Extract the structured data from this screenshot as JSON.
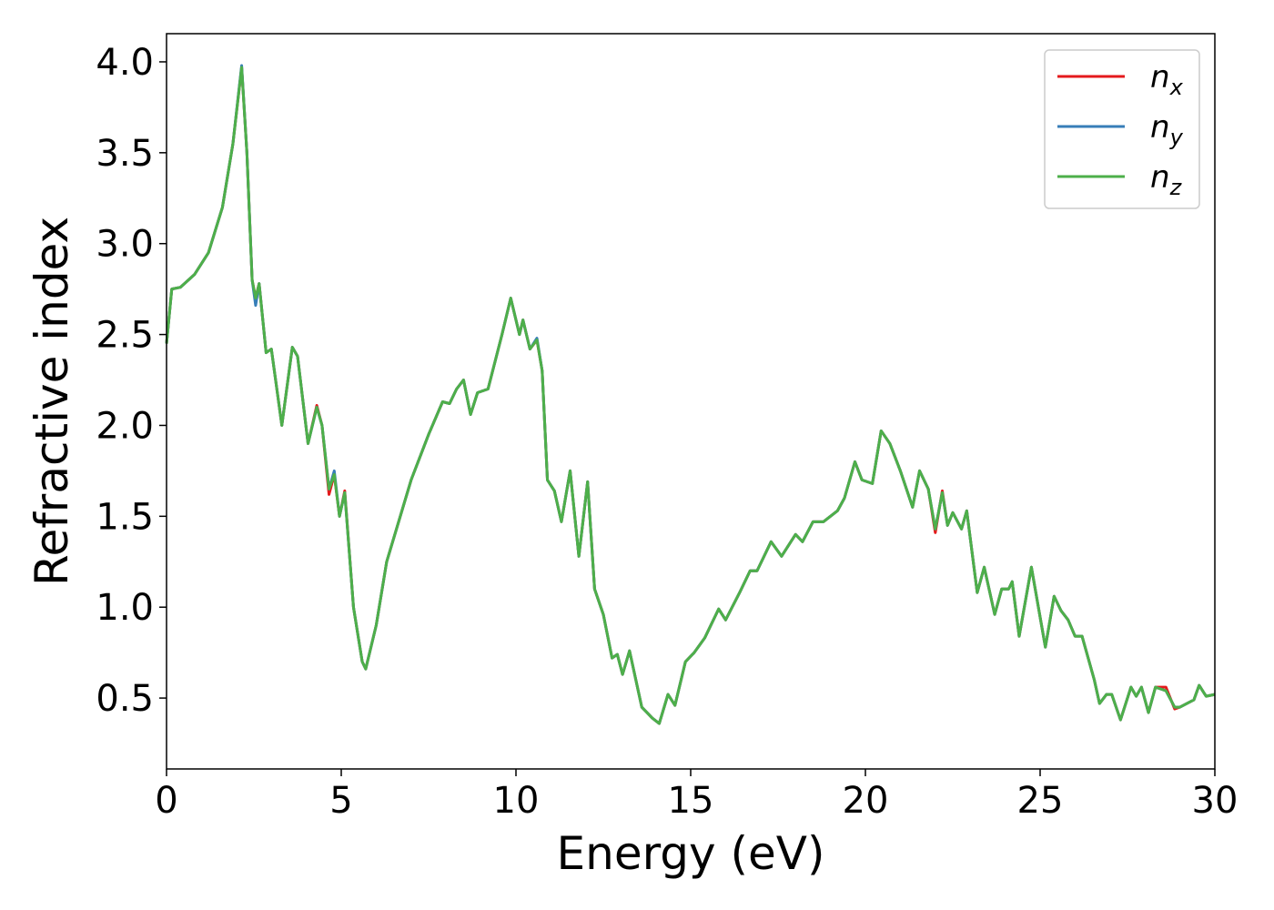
{
  "chart_data": {
    "type": "line",
    "x_label": "Energy (eV)",
    "y_label": "Refractive index",
    "xlim": [
      0,
      30
    ],
    "ylim": [
      0.11,
      4.155
    ],
    "xticks": [
      0,
      5,
      10,
      15,
      20,
      25,
      30
    ],
    "yticks": [
      0.5,
      {
        "value": 1,
        "label": "1.0"
      },
      1.5,
      {
        "value": 2,
        "label": "2.0"
      },
      2.5,
      {
        "value": 3,
        "label": "3.0"
      },
      3.5,
      {
        "value": 4,
        "label": "4.0"
      }
    ],
    "legend": "upper right",
    "grid": false,
    "x": [
      0,
      0.15,
      0.4,
      0.8,
      1.2,
      1.6,
      1.9,
      2.15,
      2.3,
      2.45,
      2.55,
      2.65,
      2.85,
      3.0,
      3.3,
      3.6,
      3.75,
      4.05,
      4.3,
      4.45,
      4.65,
      4.8,
      4.95,
      5.1,
      5.35,
      5.6,
      5.7,
      6.0,
      6.3,
      7.0,
      7.5,
      7.9,
      8.1,
      8.3,
      8.5,
      8.7,
      8.9,
      9.2,
      9.6,
      9.85,
      10.1,
      10.2,
      10.4,
      10.6,
      10.75,
      10.9,
      11.1,
      11.3,
      11.55,
      11.8,
      12.05,
      12.25,
      12.5,
      12.75,
      12.9,
      13.05,
      13.25,
      13.6,
      13.9,
      14.1,
      14.35,
      14.55,
      14.85,
      15.1,
      15.4,
      15.8,
      16.0,
      16.4,
      16.7,
      16.9,
      17.3,
      17.6,
      18.0,
      18.2,
      18.5,
      18.8,
      19.2,
      19.4,
      19.7,
      19.9,
      20.2,
      20.45,
      20.7,
      21.0,
      21.35,
      21.55,
      21.8,
      22.0,
      22.2,
      22.35,
      22.5,
      22.75,
      22.9,
      23.2,
      23.4,
      23.7,
      23.9,
      24.1,
      24.2,
      24.4,
      24.75,
      25.05,
      25.15,
      25.4,
      25.6,
      25.8,
      26.0,
      26.2,
      26.55,
      26.7,
      26.9,
      27.05,
      27.3,
      27.6,
      27.75,
      27.9,
      28.1,
      28.3,
      28.6,
      28.85,
      29.0,
      29.4,
      29.55,
      29.75,
      30.0
    ],
    "series": [
      {
        "name": "n_x",
        "color": "#e41a1c",
        "values": [
          2.45,
          2.75,
          2.76,
          2.83,
          2.95,
          3.2,
          3.55,
          3.97,
          3.5,
          2.8,
          2.7,
          2.78,
          2.4,
          2.42,
          2.0,
          2.43,
          2.38,
          1.9,
          2.11,
          2.0,
          1.62,
          1.73,
          1.5,
          1.64,
          1.0,
          0.7,
          0.66,
          0.9,
          1.25,
          1.7,
          1.95,
          2.13,
          2.12,
          2.2,
          2.25,
          2.06,
          2.18,
          2.2,
          2.5,
          2.7,
          2.5,
          2.58,
          2.42,
          2.47,
          2.3,
          1.7,
          1.64,
          1.47,
          1.75,
          1.28,
          1.69,
          1.1,
          0.96,
          0.72,
          0.74,
          0.63,
          0.76,
          0.45,
          0.39,
          0.36,
          0.52,
          0.46,
          0.7,
          0.75,
          0.83,
          0.99,
          0.93,
          1.08,
          1.2,
          1.2,
          1.36,
          1.28,
          1.4,
          1.36,
          1.47,
          1.47,
          1.53,
          1.6,
          1.8,
          1.7,
          1.68,
          1.97,
          1.9,
          1.75,
          1.55,
          1.75,
          1.65,
          1.41,
          1.64,
          1.45,
          1.52,
          1.43,
          1.53,
          1.08,
          1.22,
          0.96,
          1.1,
          1.1,
          1.14,
          0.84,
          1.22,
          0.89,
          0.78,
          1.06,
          0.98,
          0.93,
          0.84,
          0.84,
          0.6,
          0.47,
          0.52,
          0.52,
          0.38,
          0.56,
          0.51,
          0.56,
          0.42,
          0.56,
          0.56,
          0.44,
          0.45,
          0.49,
          0.57,
          0.51,
          0.52
        ]
      },
      {
        "name": "n_y",
        "color": "#377eb8",
        "values": [
          2.45,
          2.75,
          2.76,
          2.83,
          2.95,
          3.2,
          3.55,
          3.98,
          3.5,
          2.8,
          2.66,
          2.78,
          2.4,
          2.42,
          2.0,
          2.43,
          2.38,
          1.9,
          2.1,
          2.0,
          1.65,
          1.75,
          1.5,
          1.63,
          1.0,
          0.7,
          0.66,
          0.9,
          1.25,
          1.7,
          1.95,
          2.13,
          2.12,
          2.2,
          2.25,
          2.06,
          2.18,
          2.2,
          2.5,
          2.7,
          2.5,
          2.58,
          2.42,
          2.48,
          2.3,
          1.7,
          1.64,
          1.47,
          1.75,
          1.28,
          1.69,
          1.1,
          0.96,
          0.72,
          0.74,
          0.63,
          0.76,
          0.45,
          0.39,
          0.36,
          0.52,
          0.46,
          0.7,
          0.75,
          0.83,
          0.99,
          0.93,
          1.08,
          1.2,
          1.2,
          1.36,
          1.28,
          1.4,
          1.36,
          1.47,
          1.47,
          1.53,
          1.6,
          1.8,
          1.7,
          1.68,
          1.97,
          1.9,
          1.75,
          1.55,
          1.75,
          1.65,
          1.43,
          1.63,
          1.45,
          1.52,
          1.43,
          1.53,
          1.08,
          1.22,
          0.96,
          1.1,
          1.1,
          1.14,
          0.84,
          1.22,
          0.89,
          0.78,
          1.06,
          0.98,
          0.93,
          0.84,
          0.84,
          0.6,
          0.47,
          0.52,
          0.52,
          0.38,
          0.56,
          0.51,
          0.56,
          0.42,
          0.56,
          0.54,
          0.45,
          0.45,
          0.49,
          0.57,
          0.51,
          0.52
        ]
      },
      {
        "name": "n_z",
        "color": "#4daf4a",
        "values": [
          2.45,
          2.75,
          2.76,
          2.83,
          2.95,
          3.2,
          3.55,
          3.97,
          3.5,
          2.8,
          2.7,
          2.78,
          2.4,
          2.42,
          2.0,
          2.43,
          2.38,
          1.9,
          2.1,
          2.0,
          1.65,
          1.73,
          1.5,
          1.63,
          1.0,
          0.7,
          0.66,
          0.9,
          1.25,
          1.7,
          1.95,
          2.13,
          2.12,
          2.2,
          2.25,
          2.06,
          2.18,
          2.2,
          2.5,
          2.7,
          2.5,
          2.58,
          2.42,
          2.47,
          2.3,
          1.7,
          1.64,
          1.47,
          1.75,
          1.28,
          1.69,
          1.1,
          0.96,
          0.72,
          0.74,
          0.63,
          0.76,
          0.45,
          0.39,
          0.36,
          0.52,
          0.46,
          0.7,
          0.75,
          0.83,
          0.99,
          0.93,
          1.08,
          1.2,
          1.2,
          1.36,
          1.28,
          1.4,
          1.36,
          1.47,
          1.47,
          1.53,
          1.6,
          1.8,
          1.7,
          1.68,
          1.97,
          1.9,
          1.75,
          1.55,
          1.75,
          1.65,
          1.43,
          1.63,
          1.45,
          1.52,
          1.43,
          1.53,
          1.08,
          1.22,
          0.96,
          1.1,
          1.1,
          1.14,
          0.84,
          1.22,
          0.89,
          0.78,
          1.06,
          0.98,
          0.93,
          0.84,
          0.84,
          0.6,
          0.47,
          0.52,
          0.52,
          0.38,
          0.56,
          0.51,
          0.56,
          0.42,
          0.56,
          0.54,
          0.45,
          0.45,
          0.49,
          0.57,
          0.51,
          0.52
        ]
      }
    ]
  }
}
